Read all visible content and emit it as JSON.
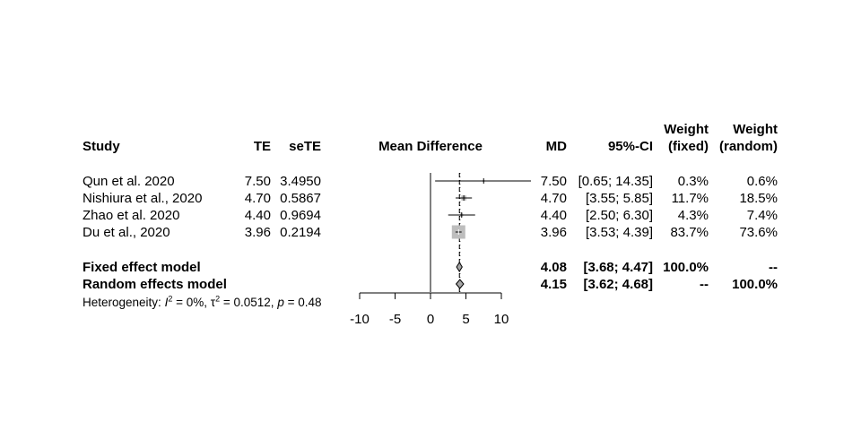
{
  "chart_data": {
    "type": "forest",
    "columns": {
      "study": "Study",
      "te": "TE",
      "sete": "seTE",
      "plot": "Mean Difference",
      "md": "MD",
      "ci": "95%-CI",
      "w_fixed_top": "Weight",
      "w_fixed_bottom": "(fixed)",
      "w_random_top": "Weight",
      "w_random_bottom": "(random)"
    },
    "studies": [
      {
        "name": "Qun et al. 2020",
        "te": "7.50",
        "sete": "3.4950",
        "md": 7.5,
        "lower": 0.65,
        "upper": 14.35,
        "md_text": "7.50",
        "ci_text": "[0.65; 14.35]",
        "w_fixed": "0.3%",
        "w_random": "0.6%",
        "weight": 0.3
      },
      {
        "name": "Nishiura et al., 2020",
        "te": "4.70",
        "sete": "0.5867",
        "md": 4.7,
        "lower": 3.55,
        "upper": 5.85,
        "md_text": "4.70",
        "ci_text": "[3.55; 5.85]",
        "w_fixed": "11.7%",
        "w_random": "18.5%",
        "weight": 11.7
      },
      {
        "name": "Zhao et al. 2020",
        "te": "4.40",
        "sete": "0.9694",
        "md": 4.4,
        "lower": 2.5,
        "upper": 6.3,
        "md_text": "4.40",
        "ci_text": "[2.50; 6.30]",
        "w_fixed": "4.3%",
        "w_random": "7.4%",
        "weight": 4.3
      },
      {
        "name": "Du et al., 2020",
        "te": "3.96",
        "sete": "0.2194",
        "md": 3.96,
        "lower": 3.53,
        "upper": 4.39,
        "md_text": "3.96",
        "ci_text": "[3.53; 4.39]",
        "w_fixed": "83.7%",
        "w_random": "73.6%",
        "weight": 83.7
      }
    ],
    "summaries": [
      {
        "name": "Fixed effect model",
        "md": 4.08,
        "lower": 3.68,
        "upper": 4.47,
        "md_text": "4.08",
        "ci_text": "[3.68; 4.47]",
        "w_fixed": "100.0%",
        "w_random": "--"
      },
      {
        "name": "Random effects model",
        "md": 4.15,
        "lower": 3.62,
        "upper": 4.68,
        "md_text": "4.15",
        "ci_text": "[3.62; 4.68]",
        "w_fixed": "--",
        "w_random": "100.0%"
      }
    ],
    "heterogeneity": {
      "prefix": "Heterogeneity: ",
      "i2": "0%",
      "tau2": "0.0512",
      "p": "0.48"
    },
    "x_axis": {
      "ticks": [
        -10,
        -5,
        0,
        5,
        10
      ],
      "range": [
        -10,
        10
      ]
    },
    "reference_line": 0,
    "colors": {
      "ink": "#000000",
      "box": "#bdbdbd",
      "diamond": "#a6a6a6"
    }
  }
}
